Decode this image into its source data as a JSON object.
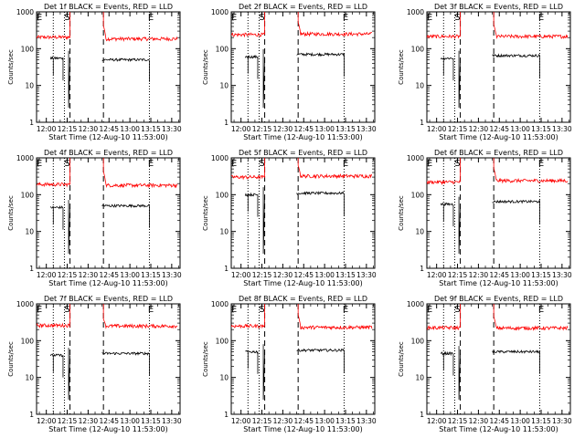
{
  "figure": {
    "panels": [
      {
        "title": "Det 1f BLACK = Events, RED = LLD",
        "xlabel": "Start Time (12-Aug-10 11:53:00)",
        "ylabel": "Counts/sec"
      },
      {
        "title": "Det 2f BLACK = Events, RED = LLD",
        "xlabel": "Start Time (12-Aug-10 11:53:00)",
        "ylabel": "Counts/sec"
      },
      {
        "title": "Det 3f BLACK = Events, RED = LLD",
        "xlabel": "Start Time (12-Aug-10 11:53:00)",
        "ylabel": "Counts/sec"
      },
      {
        "title": "Det 4f BLACK = Events, RED = LLD",
        "xlabel": "Start Time (12-Aug-10 11:53:00)",
        "ylabel": "Counts/sec"
      },
      {
        "title": "Det 5f BLACK = Events, RED = LLD",
        "xlabel": "Start Time (12-Aug-10 11:53:00)",
        "ylabel": "Counts/sec"
      },
      {
        "title": "Det 6f BLACK = Events, RED = LLD",
        "xlabel": "Start Time (12-Aug-10 11:53:00)",
        "ylabel": "Counts/sec"
      },
      {
        "title": "Det 7f BLACK = Events, RED = LLD",
        "xlabel": "Start Time (12-Aug-10 11:53:00)",
        "ylabel": "Counts/sec"
      },
      {
        "title": "Det 8f BLACK = Events, RED = LLD",
        "xlabel": "Start Time (12-Aug-10 11:53:00)",
        "ylabel": "Counts/sec"
      },
      {
        "title": "Det 9f BLACK = Events, RED = LLD",
        "xlabel": "Start Time (12-Aug-10 11:53:00)",
        "ylabel": "Counts/sec"
      }
    ]
  },
  "chart_data": [
    {
      "type": "line",
      "title": "Det 1f BLACK = Events, RED = LLD",
      "xlabel": "Start Time (12-Aug-10 11:53:00)",
      "ylabel": "Counts/sec",
      "log_y": true,
      "ylim": [
        1,
        1000
      ],
      "xlim": [
        "11:53",
        "13:36"
      ],
      "x_ticks": [
        "12:00",
        "12:15",
        "12:30",
        "12:45",
        "13:00",
        "13:15",
        "13:30"
      ],
      "y_ticks": [
        "1",
        "10",
        "100",
        "1000"
      ],
      "dotted_lines": [
        "12:05",
        "12:13",
        "13:14"
      ],
      "dashed_lines": [
        "12:17",
        "12:41"
      ],
      "markers": [
        {
          "text": "E",
          "x": "11:55"
        },
        {
          "text": "S",
          "x": "12:15"
        },
        {
          "text": "E",
          "x": "13:15"
        }
      ],
      "series": [
        {
          "color": "#ff0000",
          "segments": [
            {
              "x": [
                "11:53",
                "12:17"
              ],
              "level": 205
            },
            {
              "x": [
                "12:41",
                "13:34"
              ],
              "level": 185,
              "peak": 420
            }
          ]
        },
        {
          "color": "#000000",
          "segments": [
            {
              "x": [
                "12:03",
                "12:12"
              ],
              "level": 55
            },
            {
              "x": [
                "12:40",
                "13:14"
              ],
              "level": 50
            }
          ]
        }
      ]
    },
    {
      "type": "line",
      "title": "Det 2f BLACK = Events, RED = LLD",
      "xlabel": "Start Time (12-Aug-10 11:53:00)",
      "ylabel": "Counts/sec",
      "log_y": true,
      "ylim": [
        1,
        1000
      ],
      "xlim": [
        "11:53",
        "13:36"
      ],
      "x_ticks": [
        "12:00",
        "12:15",
        "12:30",
        "12:45",
        "13:00",
        "13:15",
        "13:30"
      ],
      "y_ticks": [
        "1",
        "10",
        "100",
        "1000"
      ],
      "dotted_lines": [
        "12:05",
        "12:13",
        "13:14"
      ],
      "dashed_lines": [
        "12:17",
        "12:41"
      ],
      "markers": [
        {
          "text": "E",
          "x": "11:55"
        },
        {
          "text": "S",
          "x": "12:15"
        },
        {
          "text": "E",
          "x": "13:15"
        }
      ],
      "series": [
        {
          "color": "#ff0000",
          "segments": [
            {
              "x": [
                "11:53",
                "12:17"
              ],
              "level": 240
            },
            {
              "x": [
                "12:41",
                "13:34"
              ],
              "level": 250,
              "peak": 520
            }
          ]
        },
        {
          "color": "#000000",
          "segments": [
            {
              "x": [
                "12:03",
                "12:12"
              ],
              "level": 60
            },
            {
              "x": [
                "12:40",
                "13:14"
              ],
              "level": 70
            }
          ]
        }
      ]
    },
    {
      "type": "line",
      "title": "Det 3f BLACK = Events, RED = LLD",
      "xlabel": "Start Time (12-Aug-10 11:53:00)",
      "ylabel": "Counts/sec",
      "log_y": true,
      "ylim": [
        1,
        1000
      ],
      "xlim": [
        "11:53",
        "13:36"
      ],
      "x_ticks": [
        "12:00",
        "12:15",
        "12:30",
        "12:45",
        "13:00",
        "13:15",
        "13:30"
      ],
      "y_ticks": [
        "1",
        "10",
        "100",
        "1000"
      ],
      "dotted_lines": [
        "12:05",
        "12:13",
        "13:14"
      ],
      "dashed_lines": [
        "12:17",
        "12:41"
      ],
      "markers": [
        {
          "text": "E",
          "x": "11:55"
        },
        {
          "text": "S",
          "x": "12:15"
        },
        {
          "text": "E",
          "x": "13:15"
        }
      ],
      "series": [
        {
          "color": "#ff0000",
          "segments": [
            {
              "x": [
                "11:53",
                "12:17"
              ],
              "level": 215
            },
            {
              "x": [
                "12:41",
                "13:34"
              ],
              "level": 215,
              "peak": 450
            }
          ]
        },
        {
          "color": "#000000",
          "segments": [
            {
              "x": [
                "12:03",
                "12:12"
              ],
              "level": 55
            },
            {
              "x": [
                "12:40",
                "13:14"
              ],
              "level": 65
            }
          ]
        }
      ]
    },
    {
      "type": "line",
      "title": "Det 4f BLACK = Events, RED = LLD",
      "xlabel": "Start Time (12-Aug-10 11:53:00)",
      "ylabel": "Counts/sec",
      "log_y": true,
      "ylim": [
        1,
        1000
      ],
      "xlim": [
        "11:53",
        "13:36"
      ],
      "x_ticks": [
        "12:00",
        "12:15",
        "12:30",
        "12:45",
        "13:00",
        "13:15",
        "13:30"
      ],
      "y_ticks": [
        "1",
        "10",
        "100",
        "1000"
      ],
      "dotted_lines": [
        "12:05",
        "12:13",
        "13:14"
      ],
      "dashed_lines": [
        "12:17",
        "12:41"
      ],
      "markers": [
        {
          "text": "E",
          "x": "11:55"
        },
        {
          "text": "S",
          "x": "12:15"
        },
        {
          "text": "E",
          "x": "13:15"
        }
      ],
      "series": [
        {
          "color": "#ff0000",
          "segments": [
            {
              "x": [
                "11:53",
                "12:17"
              ],
              "level": 190
            },
            {
              "x": [
                "12:41",
                "13:34"
              ],
              "level": 180,
              "peak": 430
            }
          ]
        },
        {
          "color": "#000000",
          "segments": [
            {
              "x": [
                "12:03",
                "12:12"
              ],
              "level": 45
            },
            {
              "x": [
                "12:40",
                "13:14"
              ],
              "level": 50
            }
          ]
        }
      ]
    },
    {
      "type": "line",
      "title": "Det 5f BLACK = Events, RED = LLD",
      "xlabel": "Start Time (12-Aug-10 11:53:00)",
      "ylabel": "Counts/sec",
      "log_y": true,
      "ylim": [
        1,
        1000
      ],
      "xlim": [
        "11:53",
        "13:36"
      ],
      "x_ticks": [
        "12:00",
        "12:15",
        "12:30",
        "12:45",
        "13:00",
        "13:15",
        "13:30"
      ],
      "y_ticks": [
        "1",
        "10",
        "100",
        "1000"
      ],
      "dotted_lines": [
        "12:05",
        "12:13",
        "13:14"
      ],
      "dashed_lines": [
        "12:17",
        "12:41"
      ],
      "markers": [
        {
          "text": "E",
          "x": "11:55"
        },
        {
          "text": "S",
          "x": "12:15"
        },
        {
          "text": "E",
          "x": "13:15"
        }
      ],
      "series": [
        {
          "color": "#ff0000",
          "segments": [
            {
              "x": [
                "11:53",
                "12:17"
              ],
              "level": 300
            },
            {
              "x": [
                "12:41",
                "13:34"
              ],
              "level": 320,
              "peak": 620
            }
          ]
        },
        {
          "color": "#000000",
          "segments": [
            {
              "x": [
                "12:03",
                "12:12"
              ],
              "level": 100
            },
            {
              "x": [
                "12:40",
                "13:14"
              ],
              "level": 110
            }
          ]
        }
      ]
    },
    {
      "type": "line",
      "title": "Det 6f BLACK = Events, RED = LLD",
      "xlabel": "Start Time (12-Aug-10 11:53:00)",
      "ylabel": "Counts/sec",
      "log_y": true,
      "ylim": [
        1,
        1000
      ],
      "xlim": [
        "11:53",
        "13:36"
      ],
      "x_ticks": [
        "12:00",
        "12:15",
        "12:30",
        "12:45",
        "13:00",
        "13:15",
        "13:30"
      ],
      "y_ticks": [
        "1",
        "10",
        "100",
        "1000"
      ],
      "dotted_lines": [
        "12:05",
        "12:13",
        "13:14"
      ],
      "dashed_lines": [
        "12:17",
        "12:41"
      ],
      "markers": [
        {
          "text": "E",
          "x": "11:55"
        },
        {
          "text": "S",
          "x": "12:15"
        },
        {
          "text": "E",
          "x": "13:15"
        }
      ],
      "series": [
        {
          "color": "#ff0000",
          "segments": [
            {
              "x": [
                "11:53",
                "12:17"
              ],
              "level": 220
            },
            {
              "x": [
                "12:41",
                "13:34"
              ],
              "level": 240,
              "peak": 520
            }
          ]
        },
        {
          "color": "#000000",
          "segments": [
            {
              "x": [
                "12:03",
                "12:12"
              ],
              "level": 55
            },
            {
              "x": [
                "12:40",
                "13:14"
              ],
              "level": 65
            }
          ]
        }
      ]
    },
    {
      "type": "line",
      "title": "Det 7f BLACK = Events, RED = LLD",
      "xlabel": "Start Time (12-Aug-10 11:53:00)",
      "ylabel": "Counts/sec",
      "log_y": true,
      "ylim": [
        1,
        1000
      ],
      "xlim": [
        "11:53",
        "13:36"
      ],
      "x_ticks": [
        "12:00",
        "12:15",
        "12:30",
        "12:45",
        "13:00",
        "13:15",
        "13:30"
      ],
      "y_ticks": [
        "1",
        "10",
        "100",
        "1000"
      ],
      "dotted_lines": [
        "12:05",
        "12:13",
        "13:14"
      ],
      "dashed_lines": [
        "12:17",
        "12:41"
      ],
      "markers": [
        {
          "text": "E",
          "x": "11:55"
        },
        {
          "text": "S",
          "x": "12:15"
        },
        {
          "text": "E",
          "x": "13:15"
        }
      ],
      "series": [
        {
          "color": "#ff0000",
          "segments": [
            {
              "x": [
                "11:53",
                "12:17"
              ],
              "level": 260
            },
            {
              "x": [
                "12:41",
                "13:34"
              ],
              "level": 250,
              "peak": 380
            }
          ]
        },
        {
          "color": "#000000",
          "segments": [
            {
              "x": [
                "12:03",
                "12:12"
              ],
              "level": 40
            },
            {
              "x": [
                "12:40",
                "13:14"
              ],
              "level": 45
            }
          ]
        }
      ]
    },
    {
      "type": "line",
      "title": "Det 8f BLACK = Events, RED = LLD",
      "xlabel": "Start Time (12-Aug-10 11:53:00)",
      "ylabel": "Counts/sec",
      "log_y": true,
      "ylim": [
        1,
        1000
      ],
      "xlim": [
        "11:53",
        "13:36"
      ],
      "x_ticks": [
        "12:00",
        "12:15",
        "12:30",
        "12:45",
        "13:00",
        "13:15",
        "13:30"
      ],
      "y_ticks": [
        "1",
        "10",
        "100",
        "1000"
      ],
      "dotted_lines": [
        "12:05",
        "12:13",
        "13:14"
      ],
      "dashed_lines": [
        "12:17",
        "12:41"
      ],
      "markers": [
        {
          "text": "E",
          "x": "11:55"
        },
        {
          "text": "S",
          "x": "12:15"
        },
        {
          "text": "E",
          "x": "13:15"
        }
      ],
      "series": [
        {
          "color": "#ff0000",
          "segments": [
            {
              "x": [
                "11:53",
                "12:17"
              ],
              "level": 250
            },
            {
              "x": [
                "12:41",
                "13:34"
              ],
              "level": 230,
              "peak": 500
            }
          ]
        },
        {
          "color": "#000000",
          "segments": [
            {
              "x": [
                "12:03",
                "12:12"
              ],
              "level": 50
            },
            {
              "x": [
                "12:40",
                "13:14"
              ],
              "level": 55
            }
          ]
        }
      ]
    },
    {
      "type": "line",
      "title": "Det 9f BLACK = Events, RED = LLD",
      "xlabel": "Start Time (12-Aug-10 11:53:00)",
      "ylabel": "Counts/sec",
      "log_y": true,
      "ylim": [
        1,
        1000
      ],
      "xlim": [
        "11:53",
        "13:36"
      ],
      "x_ticks": [
        "12:00",
        "12:15",
        "12:30",
        "12:45",
        "13:00",
        "13:15",
        "13:30"
      ],
      "y_ticks": [
        "1",
        "10",
        "100",
        "1000"
      ],
      "dotted_lines": [
        "12:05",
        "12:13",
        "13:14"
      ],
      "dashed_lines": [
        "12:17",
        "12:41"
      ],
      "markers": [
        {
          "text": "E",
          "x": "11:55"
        },
        {
          "text": "S",
          "x": "12:15"
        },
        {
          "text": "E",
          "x": "13:15"
        }
      ],
      "series": [
        {
          "color": "#ff0000",
          "segments": [
            {
              "x": [
                "11:53",
                "12:17"
              ],
              "level": 225
            },
            {
              "x": [
                "12:41",
                "13:34"
              ],
              "level": 220,
              "peak": 450
            }
          ]
        },
        {
          "color": "#000000",
          "segments": [
            {
              "x": [
                "12:03",
                "12:12"
              ],
              "level": 45
            },
            {
              "x": [
                "12:40",
                "13:14"
              ],
              "level": 50
            }
          ]
        }
      ]
    }
  ]
}
